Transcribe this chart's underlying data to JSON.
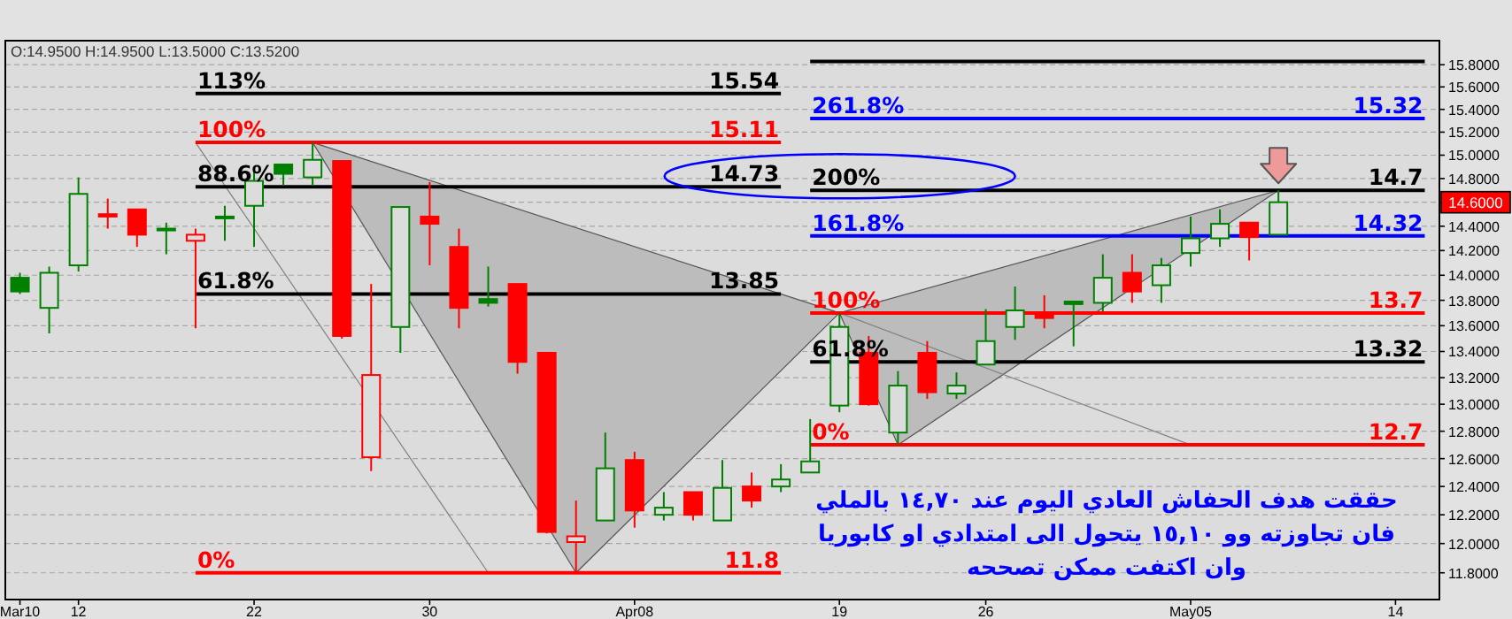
{
  "chart_data": {
    "type": "candlestick",
    "categories": [
      "Mar10",
      null,
      "12",
      null,
      null,
      null,
      null,
      null,
      "22",
      null,
      null,
      null,
      null,
      null,
      "30",
      null,
      null,
      null,
      null,
      null,
      null,
      "Apr08",
      null,
      null,
      null,
      null,
      null,
      null,
      "19",
      null,
      null,
      null,
      null,
      "26",
      null,
      null,
      null,
      null,
      null,
      null,
      "May05",
      null,
      null,
      null,
      null,
      null,
      null,
      "14",
      null
    ],
    "ohlc": [
      [
        13.98,
        14.02,
        13.85,
        13.87
      ],
      [
        13.74,
        14.07,
        13.54,
        14.02
      ],
      [
        14.08,
        14.81,
        14.03,
        14.67
      ],
      [
        14.5,
        14.63,
        14.38,
        14.48
      ],
      [
        14.54,
        14.54,
        14.23,
        14.33
      ],
      [
        14.37,
        14.43,
        14.17,
        14.38
      ],
      [
        14.28,
        14.38,
        13.58,
        14.33
      ],
      [
        14.47,
        14.57,
        14.28,
        14.48
      ],
      [
        14.57,
        14.86,
        14.23,
        14.78
      ],
      [
        14.92,
        14.92,
        14.74,
        14.84
      ],
      [
        14.81,
        15.11,
        14.74,
        14.96
      ],
      [
        14.95,
        14.95,
        13.5,
        13.52
      ],
      [
        12.61,
        13.93,
        12.51,
        13.22
      ],
      [
        13.59,
        14.56,
        13.39,
        14.56
      ],
      [
        14.48,
        14.77,
        14.08,
        14.42
      ],
      [
        14.23,
        14.38,
        13.58,
        13.74
      ],
      [
        13.81,
        14.07,
        13.75,
        13.78
      ],
      [
        13.93,
        13.93,
        13.23,
        13.32
      ],
      [
        13.39,
        13.39,
        12.07,
        12.08
      ],
      [
        12.01,
        12.3,
        11.8,
        12.05
      ],
      [
        12.16,
        12.79,
        12.16,
        12.53
      ],
      [
        12.59,
        12.65,
        12.11,
        12.23
      ],
      [
        12.2,
        12.36,
        12.16,
        12.25
      ],
      [
        12.36,
        12.36,
        12.16,
        12.2
      ],
      [
        12.16,
        12.59,
        12.16,
        12.39
      ],
      [
        12.4,
        12.5,
        12.25,
        12.3
      ],
      [
        12.4,
        12.56,
        12.36,
        12.45
      ],
      [
        12.5,
        12.89,
        12.5,
        12.58
      ],
      [
        12.99,
        13.7,
        12.94,
        13.59
      ],
      [
        13.39,
        13.52,
        12.99,
        13.0
      ],
      [
        12.79,
        13.25,
        12.7,
        13.14
      ],
      [
        13.39,
        13.48,
        13.04,
        13.09
      ],
      [
        13.08,
        13.24,
        13.04,
        13.14
      ],
      [
        13.3,
        13.73,
        13.3,
        13.48
      ],
      [
        13.59,
        13.91,
        13.49,
        13.72
      ],
      [
        13.68,
        13.84,
        13.58,
        13.66
      ],
      [
        13.79,
        13.79,
        13.44,
        13.77
      ],
      [
        13.78,
        14.17,
        13.71,
        13.98
      ],
      [
        14.02,
        14.17,
        13.78,
        13.87
      ],
      [
        13.92,
        14.14,
        13.78,
        14.08
      ],
      [
        14.18,
        14.48,
        14.07,
        14.3
      ],
      [
        14.3,
        14.54,
        14.23,
        14.42
      ],
      [
        14.43,
        14.43,
        14.12,
        14.31
      ],
      [
        14.33,
        14.7,
        14.33,
        14.6
      ],
      null,
      null,
      null,
      null,
      null
    ],
    "colors": [
      "#008000",
      "#008000",
      "#008000",
      "#ff0000",
      "#ff0000",
      "#008000",
      "#ff0000",
      "#008000",
      "#008000",
      "#008000",
      "#008000",
      "#ff0000",
      "#ff0000",
      "#008000",
      "#ff0000",
      "#ff0000",
      "#008000",
      "#ff0000",
      "#ff0000",
      "#ff0000",
      "#008000",
      "#ff0000",
      "#008000",
      "#ff0000",
      "#008000",
      "#ff0000",
      "#008000",
      "#008000",
      "#008000",
      "#ff0000",
      "#008000",
      "#ff0000",
      "#008000",
      "#008000",
      "#008000",
      "#ff0000",
      "#008000",
      "#008000",
      "#ff0000",
      "#008000",
      "#008000",
      "#008000",
      "#ff0000",
      "#008000",
      null,
      null,
      null,
      null,
      null
    ],
    "series": [
      {
        "type": "area",
        "color": "#bcbcbc",
        "values": [
          null,
          null,
          null,
          null,
          null,
          null,
          null,
          null,
          null,
          null,
          15.11,
          null,
          null,
          null,
          null,
          null,
          null,
          null,
          null,
          11.8,
          null,
          null,
          null,
          null,
          null,
          null,
          null,
          null,
          13.7,
          null,
          null,
          null,
          null,
          null,
          null,
          null,
          null,
          null,
          null,
          null,
          null,
          null,
          null,
          null,
          null,
          null,
          null,
          null,
          null
        ]
      },
      {
        "type": "area",
        "color": "#bcbcbc",
        "values": [
          null,
          null,
          null,
          null,
          null,
          null,
          null,
          null,
          null,
          null,
          null,
          null,
          null,
          null,
          null,
          null,
          null,
          null,
          null,
          null,
          null,
          null,
          null,
          null,
          null,
          null,
          null,
          null,
          13.7,
          null,
          12.7,
          null,
          null,
          null,
          null,
          null,
          null,
          null,
          null,
          null,
          null,
          null,
          null,
          14.7,
          null,
          null,
          null,
          null,
          null
        ]
      },
      {
        "type": "line",
        "color": "#808080",
        "values": [
          null,
          null,
          null,
          null,
          null,
          null,
          15.11,
          null,
          null,
          null,
          null,
          null,
          null,
          null,
          null,
          null,
          11.8,
          null,
          null,
          null,
          null,
          null,
          null,
          null,
          null,
          null,
          null,
          null,
          null,
          null,
          null,
          null,
          null,
          null,
          null,
          null,
          null,
          null,
          null,
          null,
          null,
          null,
          null,
          null,
          null,
          null,
          null,
          null,
          null
        ]
      },
      {
        "type": "line",
        "color": "#808080",
        "values": [
          null,
          null,
          null,
          null,
          null,
          null,
          null,
          null,
          null,
          null,
          null,
          null,
          null,
          null,
          null,
          null,
          null,
          null,
          null,
          null,
          null,
          null,
          null,
          null,
          null,
          null,
          null,
          null,
          13.7,
          null,
          null,
          null,
          null,
          null,
          null,
          null,
          null,
          null,
          null,
          null,
          12.7,
          null,
          null,
          null,
          null,
          null,
          null,
          null,
          null
        ]
      },
      {
        "type": "line",
        "name": "113%",
        "color": "#000000",
        "values": [
          null,
          null,
          null,
          null,
          null,
          null,
          15.54,
          null,
          null,
          null,
          null,
          null,
          null,
          null,
          null,
          null,
          null,
          null,
          null,
          null,
          null,
          null,
          null,
          null,
          null,
          null,
          15.54,
          null,
          null,
          null,
          null,
          null,
          null,
          null,
          null,
          null,
          null,
          null,
          null,
          null,
          null,
          null,
          null,
          null,
          null,
          null,
          null,
          null,
          null
        ],
        "value_labels": [
          null,
          null,
          null,
          null,
          null,
          null,
          null,
          null,
          null,
          null,
          null,
          null,
          null,
          null,
          null,
          null,
          null,
          null,
          null,
          null,
          null,
          null,
          null,
          null,
          null,
          null,
          "15.54",
          null,
          null,
          null,
          null,
          null,
          null,
          null,
          null,
          null,
          null,
          null,
          null,
          null,
          null,
          null,
          null,
          null,
          null,
          null,
          null,
          null,
          null
        ]
      },
      {
        "type": "line",
        "name": "100%",
        "color": "#ff0000",
        "values": [
          null,
          null,
          null,
          null,
          null,
          null,
          15.11,
          null,
          null,
          null,
          null,
          null,
          null,
          null,
          null,
          null,
          null,
          null,
          null,
          null,
          null,
          null,
          null,
          null,
          null,
          null,
          15.11,
          null,
          null,
          null,
          null,
          null,
          null,
          null,
          null,
          null,
          null,
          null,
          null,
          null,
          null,
          null,
          null,
          null,
          null,
          null,
          null,
          null,
          null
        ],
        "value_labels": [
          null,
          null,
          null,
          null,
          null,
          null,
          null,
          null,
          null,
          null,
          null,
          null,
          null,
          null,
          null,
          null,
          null,
          null,
          null,
          null,
          null,
          null,
          null,
          null,
          null,
          null,
          "15.11",
          null,
          null,
          null,
          null,
          null,
          null,
          null,
          null,
          null,
          null,
          null,
          null,
          null,
          null,
          null,
          null,
          null,
          null,
          null,
          null,
          null,
          null
        ]
      },
      {
        "type": "line",
        "name": "88.6%",
        "color": "#000000",
        "values": [
          null,
          null,
          null,
          null,
          null,
          null,
          14.73,
          null,
          null,
          null,
          null,
          null,
          null,
          null,
          null,
          null,
          null,
          null,
          null,
          null,
          null,
          null,
          null,
          null,
          null,
          null,
          14.73,
          null,
          null,
          null,
          null,
          null,
          null,
          null,
          null,
          null,
          null,
          null,
          null,
          null,
          null,
          null,
          null,
          null,
          null,
          null,
          null,
          null,
          null
        ],
        "value_labels": [
          null,
          null,
          null,
          null,
          null,
          null,
          null,
          null,
          null,
          null,
          null,
          null,
          null,
          null,
          null,
          null,
          null,
          null,
          null,
          null,
          null,
          null,
          null,
          null,
          null,
          null,
          "14.73",
          null,
          null,
          null,
          null,
          null,
          null,
          null,
          null,
          null,
          null,
          null,
          null,
          null,
          null,
          null,
          null,
          null,
          null,
          null,
          null,
          null,
          null
        ]
      },
      {
        "type": "line",
        "name": "61.8%",
        "color": "#000000",
        "values": [
          null,
          null,
          null,
          null,
          null,
          null,
          13.85,
          null,
          null,
          null,
          null,
          null,
          null,
          null,
          null,
          null,
          null,
          null,
          null,
          null,
          null,
          null,
          null,
          null,
          null,
          null,
          13.85,
          null,
          null,
          null,
          null,
          null,
          null,
          null,
          null,
          null,
          null,
          null,
          null,
          null,
          null,
          null,
          null,
          null,
          null,
          null,
          null,
          null,
          null
        ],
        "value_labels": [
          null,
          null,
          null,
          null,
          null,
          null,
          null,
          null,
          null,
          null,
          null,
          null,
          null,
          null,
          null,
          null,
          null,
          null,
          null,
          null,
          null,
          null,
          null,
          null,
          null,
          null,
          "13.85",
          null,
          null,
          null,
          null,
          null,
          null,
          null,
          null,
          null,
          null,
          null,
          null,
          null,
          null,
          null,
          null,
          null,
          null,
          null,
          null,
          null,
          null
        ]
      },
      {
        "type": "line",
        "name": "0%",
        "color": "#ff0000",
        "values": [
          null,
          null,
          null,
          null,
          null,
          null,
          11.8,
          null,
          null,
          null,
          null,
          null,
          null,
          null,
          null,
          null,
          null,
          null,
          null,
          null,
          null,
          null,
          null,
          null,
          null,
          null,
          11.8,
          null,
          null,
          null,
          null,
          null,
          null,
          null,
          null,
          null,
          null,
          null,
          null,
          null,
          null,
          null,
          null,
          null,
          null,
          null,
          null,
          null,
          null
        ],
        "value_labels": [
          null,
          null,
          null,
          null,
          null,
          null,
          null,
          null,
          null,
          null,
          null,
          null,
          null,
          null,
          null,
          null,
          null,
          null,
          null,
          null,
          null,
          null,
          null,
          null,
          null,
          null,
          "11.8",
          null,
          null,
          null,
          null,
          null,
          null,
          null,
          null,
          null,
          null,
          null,
          null,
          null,
          null,
          null,
          null,
          null,
          null,
          null,
          null,
          null,
          null
        ]
      },
      {
        "type": "line",
        "name": "261.8%",
        "color": "#0000ff",
        "values": [
          null,
          null,
          null,
          null,
          null,
          null,
          null,
          null,
          null,
          null,
          null,
          null,
          null,
          null,
          null,
          null,
          null,
          null,
          null,
          null,
          null,
          null,
          null,
          null,
          null,
          null,
          null,
          15.32,
          null,
          null,
          null,
          null,
          null,
          null,
          null,
          null,
          null,
          null,
          null,
          null,
          null,
          null,
          null,
          null,
          null,
          null,
          null,
          null,
          15.32
        ],
        "value_labels": [
          null,
          null,
          null,
          null,
          null,
          null,
          null,
          null,
          null,
          null,
          null,
          null,
          null,
          null,
          null,
          null,
          null,
          null,
          null,
          null,
          null,
          null,
          null,
          null,
          null,
          null,
          null,
          null,
          null,
          null,
          null,
          null,
          null,
          null,
          null,
          null,
          null,
          null,
          null,
          null,
          null,
          null,
          null,
          null,
          null,
          null,
          null,
          null,
          "15.32"
        ]
      },
      {
        "type": "line",
        "name": "200%",
        "color": "#000000",
        "values": [
          null,
          null,
          null,
          null,
          null,
          null,
          null,
          null,
          null,
          null,
          null,
          null,
          null,
          null,
          null,
          null,
          null,
          null,
          null,
          null,
          null,
          null,
          null,
          null,
          null,
          null,
          null,
          14.7,
          null,
          null,
          null,
          null,
          null,
          null,
          null,
          null,
          null,
          null,
          null,
          null,
          null,
          null,
          null,
          null,
          null,
          null,
          null,
          null,
          14.7
        ],
        "value_labels": [
          null,
          null,
          null,
          null,
          null,
          null,
          null,
          null,
          null,
          null,
          null,
          null,
          null,
          null,
          null,
          null,
          null,
          null,
          null,
          null,
          null,
          null,
          null,
          null,
          null,
          null,
          null,
          null,
          null,
          null,
          null,
          null,
          null,
          null,
          null,
          null,
          null,
          null,
          null,
          null,
          null,
          null,
          null,
          null,
          null,
          null,
          null,
          null,
          "14.7"
        ]
      },
      {
        "type": "line",
        "name": "161.8%",
        "color": "#0000ff",
        "values": [
          null,
          null,
          null,
          null,
          null,
          null,
          null,
          null,
          null,
          null,
          null,
          null,
          null,
          null,
          null,
          null,
          null,
          null,
          null,
          null,
          null,
          null,
          null,
          null,
          null,
          null,
          null,
          14.32,
          null,
          null,
          null,
          null,
          null,
          null,
          null,
          null,
          null,
          null,
          null,
          null,
          null,
          null,
          null,
          null,
          null,
          null,
          null,
          null,
          14.32
        ],
        "value_labels": [
          null,
          null,
          null,
          null,
          null,
          null,
          null,
          null,
          null,
          null,
          null,
          null,
          null,
          null,
          null,
          null,
          null,
          null,
          null,
          null,
          null,
          null,
          null,
          null,
          null,
          null,
          null,
          null,
          null,
          null,
          null,
          null,
          null,
          null,
          null,
          null,
          null,
          null,
          null,
          null,
          null,
          null,
          null,
          null,
          null,
          null,
          null,
          null,
          "14.32"
        ]
      },
      {
        "type": "line",
        "name": "100%",
        "color": "#ff0000",
        "values": [
          null,
          null,
          null,
          null,
          null,
          null,
          null,
          null,
          null,
          null,
          null,
          null,
          null,
          null,
          null,
          null,
          null,
          null,
          null,
          null,
          null,
          null,
          null,
          null,
          null,
          null,
          null,
          13.7,
          null,
          null,
          null,
          null,
          null,
          null,
          null,
          null,
          null,
          null,
          null,
          null,
          null,
          null,
          null,
          null,
          null,
          null,
          null,
          null,
          13.7
        ],
        "value_labels": [
          null,
          null,
          null,
          null,
          null,
          null,
          null,
          null,
          null,
          null,
          null,
          null,
          null,
          null,
          null,
          null,
          null,
          null,
          null,
          null,
          null,
          null,
          null,
          null,
          null,
          null,
          null,
          null,
          null,
          null,
          null,
          null,
          null,
          null,
          null,
          null,
          null,
          null,
          null,
          null,
          null,
          null,
          null,
          null,
          null,
          null,
          null,
          null,
          "13.7"
        ]
      },
      {
        "type": "line",
        "name": "61.8%",
        "color": "#000000",
        "values": [
          null,
          null,
          null,
          null,
          null,
          null,
          null,
          null,
          null,
          null,
          null,
          null,
          null,
          null,
          null,
          null,
          null,
          null,
          null,
          null,
          null,
          null,
          null,
          null,
          null,
          null,
          null,
          13.32,
          null,
          null,
          null,
          null,
          null,
          null,
          null,
          null,
          null,
          null,
          null,
          null,
          null,
          null,
          null,
          null,
          null,
          null,
          null,
          null,
          13.32
        ],
        "value_labels": [
          null,
          null,
          null,
          null,
          null,
          null,
          null,
          null,
          null,
          null,
          null,
          null,
          null,
          null,
          null,
          null,
          null,
          null,
          null,
          null,
          null,
          null,
          null,
          null,
          null,
          null,
          null,
          null,
          null,
          null,
          null,
          null,
          null,
          null,
          null,
          null,
          null,
          null,
          null,
          null,
          null,
          null,
          null,
          null,
          null,
          null,
          null,
          null,
          "13.32"
        ]
      },
      {
        "type": "line",
        "name": "0%",
        "color": "#ff0000",
        "values": [
          null,
          null,
          null,
          null,
          null,
          null,
          null,
          null,
          null,
          null,
          null,
          null,
          null,
          null,
          null,
          null,
          null,
          null,
          null,
          null,
          null,
          null,
          null,
          null,
          null,
          null,
          null,
          12.7,
          null,
          null,
          null,
          null,
          null,
          null,
          null,
          null,
          null,
          null,
          null,
          null,
          null,
          null,
          null,
          null,
          null,
          null,
          null,
          null,
          12.7
        ],
        "value_labels": [
          null,
          null,
          null,
          null,
          null,
          null,
          null,
          null,
          null,
          null,
          null,
          null,
          null,
          null,
          null,
          null,
          null,
          null,
          null,
          null,
          null,
          null,
          null,
          null,
          null,
          null,
          null,
          null,
          null,
          null,
          null,
          null,
          null,
          null,
          null,
          null,
          null,
          null,
          null,
          null,
          null,
          null,
          null,
          null,
          null,
          null,
          null,
          null,
          "12.7"
        ]
      },
      {
        "type": "line",
        "color": "#000000",
        "values": [
          null,
          null,
          null,
          null,
          null,
          null,
          null,
          null,
          null,
          null,
          null,
          null,
          null,
          null,
          null,
          null,
          null,
          null,
          null,
          null,
          null,
          null,
          null,
          null,
          null,
          null,
          null,
          15.83,
          null,
          null,
          null,
          null,
          null,
          null,
          null,
          null,
          null,
          null,
          null,
          null,
          null,
          null,
          null,
          null,
          null,
          null,
          null,
          null,
          15.83
        ]
      }
    ],
    "ylim": [
      11.62,
      16.02
    ],
    "log": true,
    "grid": "y",
    "yticks": [
      {
        "value": 11.8,
        "label": "11.8000"
      },
      {
        "value": 12.0,
        "label": "12.0000"
      },
      {
        "value": 12.2,
        "label": "12.2000"
      },
      {
        "value": 12.4,
        "label": "12.4000"
      },
      {
        "value": 12.6,
        "label": "12.6000"
      },
      {
        "value": 12.8,
        "label": "12.8000"
      },
      {
        "value": 13.0,
        "label": "13.0000"
      },
      {
        "value": 13.2,
        "label": "13.2000"
      },
      {
        "value": 13.4,
        "label": "13.4000"
      },
      {
        "value": 13.6,
        "label": "13.6000"
      },
      {
        "value": 13.8,
        "label": "13.8000"
      },
      {
        "value": 14.0,
        "label": "14.0000"
      },
      {
        "value": 14.2,
        "label": "14.2000"
      },
      {
        "value": 14.4,
        "label": "14.4000"
      },
      {
        "value": 14.6,
        "label": null
      },
      {
        "value": 14.8,
        "label": "14.8000"
      },
      {
        "value": 15.0,
        "label": "15.0000"
      },
      {
        "value": 15.2,
        "label": "15.2000"
      },
      {
        "value": 15.4,
        "label": "15.4000"
      },
      {
        "value": 15.6,
        "label": "15.6000"
      },
      {
        "value": 15.8,
        "label": "15.8000"
      }
    ],
    "annotations": [
      "O:14.9500  H:14.9500  L:13.5000  C:13.5200",
      "14.6000",
      "حققت هدف الحفاش العادي اليوم عند ١٤,٧٠ بالملي",
      "فان تجاوزته وو ١٥,١٠ يتحول الى امتدادي او كابوريا",
      "وان اكتفت ممكن تصححه"
    ]
  }
}
